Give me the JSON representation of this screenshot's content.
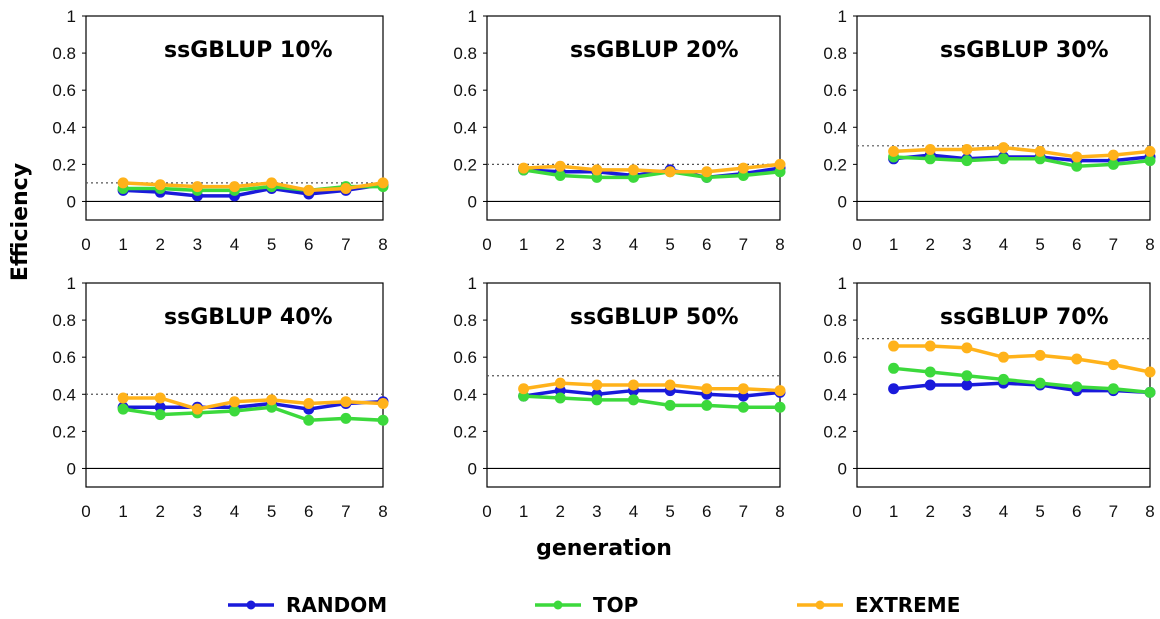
{
  "chart_data": {
    "type": "line",
    "ylabel": "Efficiency",
    "xlabel": "generation",
    "x_ticks": [
      "0",
      "1",
      "2",
      "3",
      "4",
      "5",
      "6",
      "7",
      "8"
    ],
    "y_ticks": [
      "1",
      "0.8",
      "0.6",
      "0.4",
      "0.2",
      "0"
    ],
    "xlim": [
      0,
      8
    ],
    "ylim": [
      -0.1,
      1
    ],
    "legend": {
      "placement": "bottom-center",
      "entries": [
        {
          "name": "RANDOM",
          "color": "#1a1adb"
        },
        {
          "name": "TOP",
          "color": "#3cd93c"
        },
        {
          "name": "EXTREME",
          "color": "#ffb21a"
        }
      ]
    },
    "colors": {
      "RANDOM": "#1a1adb",
      "TOP": "#3cd93c",
      "EXTREME": "#ffb21a",
      "reference": "#555555"
    },
    "panels": [
      {
        "title": "ssGBLUP 10%",
        "reference": 0.1,
        "x": [
          1,
          2,
          3,
          4,
          5,
          6,
          7,
          8
        ],
        "series": [
          {
            "name": "RANDOM",
            "values": [
              0.06,
              0.05,
              0.03,
              0.03,
              0.07,
              0.04,
              0.06,
              0.09
            ]
          },
          {
            "name": "TOP",
            "values": [
              0.07,
              0.07,
              0.06,
              0.06,
              0.08,
              0.06,
              0.08,
              0.08
            ]
          },
          {
            "name": "EXTREME",
            "values": [
              0.1,
              0.09,
              0.08,
              0.08,
              0.1,
              0.06,
              0.07,
              0.1
            ]
          }
        ]
      },
      {
        "title": "ssGBLUP 20%",
        "reference": 0.2,
        "x": [
          1,
          2,
          3,
          4,
          5,
          6,
          7,
          8
        ],
        "series": [
          {
            "name": "RANDOM",
            "values": [
              0.17,
              0.16,
              0.16,
              0.14,
              0.17,
              0.13,
              0.15,
              0.18
            ]
          },
          {
            "name": "TOP",
            "values": [
              0.17,
              0.14,
              0.13,
              0.13,
              0.16,
              0.13,
              0.14,
              0.16
            ]
          },
          {
            "name": "EXTREME",
            "values": [
              0.18,
              0.19,
              0.17,
              0.17,
              0.16,
              0.16,
              0.18,
              0.2
            ]
          }
        ]
      },
      {
        "title": "ssGBLUP 30%",
        "reference": 0.3,
        "x": [
          1,
          2,
          3,
          4,
          5,
          6,
          7,
          8
        ],
        "series": [
          {
            "name": "RANDOM",
            "values": [
              0.23,
              0.25,
              0.23,
              0.24,
              0.24,
              0.22,
              0.22,
              0.24
            ]
          },
          {
            "name": "TOP",
            "values": [
              0.24,
              0.23,
              0.22,
              0.23,
              0.23,
              0.19,
              0.2,
              0.22
            ]
          },
          {
            "name": "EXTREME",
            "values": [
              0.27,
              0.28,
              0.28,
              0.29,
              0.27,
              0.24,
              0.25,
              0.27
            ]
          }
        ]
      },
      {
        "title": "ssGBLUP 40%",
        "reference": 0.4,
        "x": [
          1,
          2,
          3,
          4,
          5,
          6,
          7,
          8
        ],
        "series": [
          {
            "name": "RANDOM",
            "values": [
              0.33,
              0.33,
              0.33,
              0.33,
              0.35,
              0.32,
              0.35,
              0.36
            ]
          },
          {
            "name": "TOP",
            "values": [
              0.32,
              0.29,
              0.3,
              0.31,
              0.33,
              0.26,
              0.27,
              0.26
            ]
          },
          {
            "name": "EXTREME",
            "values": [
              0.38,
              0.38,
              0.32,
              0.36,
              0.37,
              0.35,
              0.36,
              0.35
            ]
          }
        ]
      },
      {
        "title": "ssGBLUP 50%",
        "reference": 0.5,
        "x": [
          1,
          2,
          3,
          4,
          5,
          6,
          7,
          8
        ],
        "series": [
          {
            "name": "RANDOM",
            "values": [
              0.39,
              0.42,
              0.4,
              0.42,
              0.42,
              0.4,
              0.39,
              0.41
            ]
          },
          {
            "name": "TOP",
            "values": [
              0.39,
              0.38,
              0.37,
              0.37,
              0.34,
              0.34,
              0.33,
              0.33
            ]
          },
          {
            "name": "EXTREME",
            "values": [
              0.43,
              0.46,
              0.45,
              0.45,
              0.45,
              0.43,
              0.43,
              0.42
            ]
          }
        ]
      },
      {
        "title": "ssGBLUP 70%",
        "reference": 0.7,
        "x": [
          1,
          2,
          3,
          4,
          5,
          6,
          7,
          8
        ],
        "series": [
          {
            "name": "RANDOM",
            "values": [
              0.43,
              0.45,
              0.45,
              0.46,
              0.45,
              0.42,
              0.42,
              0.41
            ]
          },
          {
            "name": "TOP",
            "values": [
              0.54,
              0.52,
              0.5,
              0.48,
              0.46,
              0.44,
              0.43,
              0.41
            ]
          },
          {
            "name": "EXTREME",
            "values": [
              0.66,
              0.66,
              0.65,
              0.6,
              0.61,
              0.59,
              0.56,
              0.52
            ]
          }
        ]
      }
    ]
  }
}
